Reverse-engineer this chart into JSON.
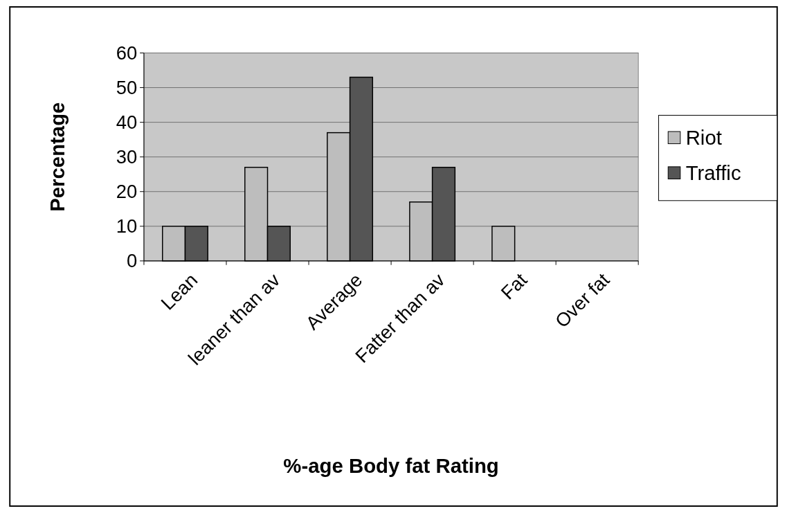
{
  "chart_data": {
    "type": "bar",
    "xlabel": "%-age Body fat Rating",
    "ylabel": "Percentage",
    "categories": [
      "Lean",
      "leaner than av",
      "Average",
      "Fatter than av",
      "Fat",
      "Over fat"
    ],
    "series": [
      {
        "name": "Riot",
        "color": "#bdbdbd",
        "values": [
          10,
          27,
          37,
          17,
          10,
          0
        ]
      },
      {
        "name": "Traffic",
        "color": "#555555",
        "values": [
          10,
          10,
          53,
          27,
          0,
          0
        ]
      }
    ],
    "ylim": [
      0,
      60
    ],
    "yticks": [
      0,
      10,
      20,
      30,
      40,
      50,
      60
    ],
    "grid": "y",
    "legend": "right"
  }
}
